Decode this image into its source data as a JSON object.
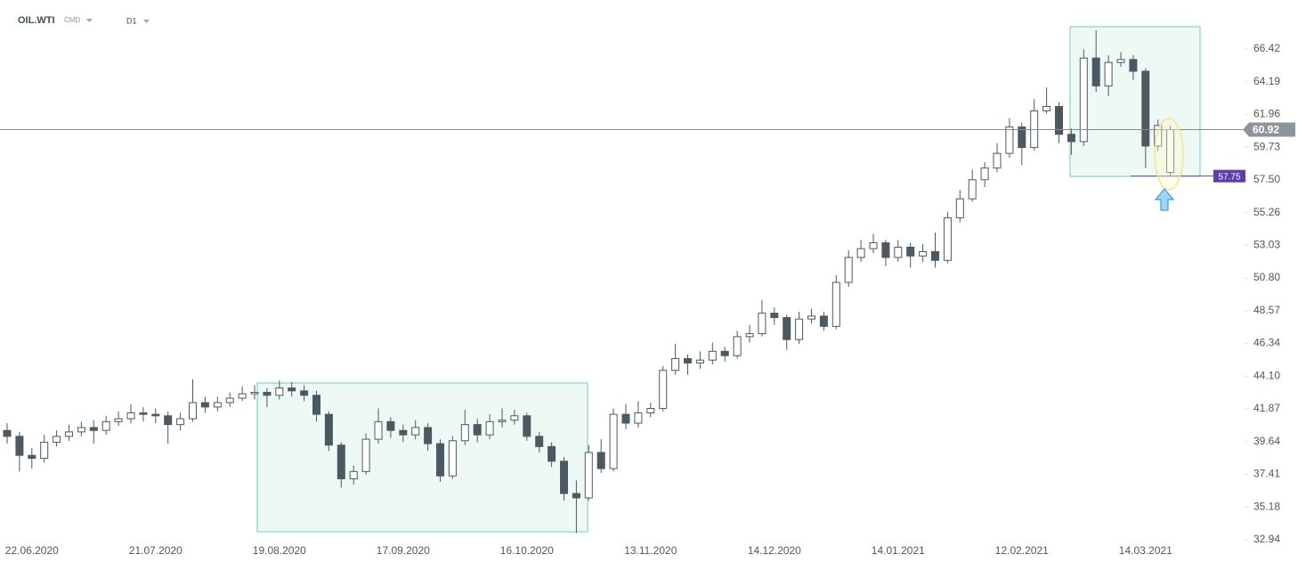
{
  "chart_data": {
    "type": "candlestick",
    "symbol": "OIL.WTI",
    "market": "CMD",
    "interval": "D1",
    "up_color": "#ffffff",
    "down_color": "#4b5a62",
    "outline_color": "#4b5a62",
    "last_price": 60.92,
    "level": 57.75,
    "ylim": [
      32.09,
      69.76
    ],
    "yticks": [
      32.94,
      35.18,
      37.41,
      39.64,
      41.87,
      {
        "value": 44.1,
        "label": "44.10"
      },
      46.34,
      48.57,
      {
        "value": 50.8,
        "label": "50.80"
      },
      53.03,
      55.26,
      {
        "value": 57.5,
        "label": "57.50"
      },
      59.73,
      61.96,
      64.19,
      66.42
    ],
    "categories": [
      null,
      null,
      "22.06.2020",
      null,
      null,
      null,
      null,
      null,
      null,
      null,
      null,
      null,
      "21.07.2020",
      null,
      null,
      null,
      null,
      null,
      null,
      null,
      null,
      null,
      "19.08.2020",
      null,
      null,
      null,
      null,
      null,
      null,
      null,
      null,
      null,
      "17.09.2020",
      null,
      null,
      null,
      null,
      null,
      null,
      null,
      null,
      null,
      "16.10.2020",
      null,
      null,
      null,
      null,
      null,
      null,
      null,
      null,
      null,
      "13.11.2020",
      null,
      null,
      null,
      null,
      null,
      null,
      null,
      null,
      null,
      "14.12.2020",
      null,
      null,
      null,
      null,
      null,
      null,
      null,
      null,
      null,
      "14.01.2021",
      null,
      null,
      null,
      null,
      null,
      null,
      null,
      null,
      null,
      "12.02.2021",
      null,
      null,
      null,
      null,
      null,
      null,
      null,
      null,
      null,
      "14.03.2021",
      null,
      null
    ],
    "open": [
      40.4,
      40.0,
      38.7,
      38.5,
      39.6,
      40.0,
      40.3,
      40.6,
      40.4,
      41.0,
      41.2,
      41.6,
      41.5,
      41.4,
      40.8,
      41.2,
      42.3,
      42.0,
      42.3,
      42.6,
      42.9,
      43.0,
      42.8,
      43.3,
      43.1,
      42.8,
      41.5,
      39.4,
      37.1,
      37.6,
      39.8,
      41.0,
      40.4,
      40.1,
      40.6,
      39.5,
      37.3,
      39.7,
      40.8,
      40.1,
      41.0,
      41.1,
      41.4,
      40.0,
      39.3,
      38.3,
      36.1,
      35.8,
      38.9,
      37.8,
      41.5,
      40.9,
      41.6,
      41.9,
      44.5,
      45.3,
      45.0,
      45.2,
      45.8,
      45.5,
      46.8,
      47.0,
      48.4,
      48.1,
      46.6,
      48.0,
      48.2,
      47.5,
      50.5,
      52.2,
      52.8,
      53.2,
      52.2,
      52.9,
      52.3,
      52.6,
      52.0,
      54.9,
      56.2,
      57.5,
      58.3,
      59.3,
      61.1,
      59.7,
      62.2,
      62.5,
      60.6,
      60.1,
      65.8,
      63.9,
      65.5,
      65.7,
      64.9,
      59.8,
      58.0
    ],
    "high": [
      40.9,
      40.3,
      39.2,
      40.1,
      40.4,
      40.8,
      41.0,
      41.1,
      41.4,
      41.7,
      42.2,
      42.0,
      41.9,
      41.7,
      41.6,
      43.9,
      42.7,
      42.7,
      43.0,
      43.4,
      43.5,
      43.3,
      43.8,
      43.7,
      43.5,
      43.1,
      41.7,
      39.6,
      38.0,
      40.2,
      41.9,
      41.3,
      40.8,
      41.1,
      40.9,
      39.8,
      40.0,
      41.8,
      41.2,
      41.5,
      41.9,
      41.8,
      41.6,
      40.3,
      39.6,
      38.6,
      37.0,
      39.4,
      39.8,
      41.9,
      42.2,
      42.4,
      42.3,
      44.8,
      46.3,
      45.6,
      45.8,
      46.4,
      46.1,
      47.2,
      47.6,
      49.3,
      48.8,
      48.3,
      48.5,
      48.7,
      48.5,
      51.0,
      52.7,
      53.4,
      53.8,
      53.4,
      53.4,
      53.2,
      53.1,
      53.9,
      55.3,
      56.8,
      58.2,
      58.7,
      60.0,
      61.7,
      61.4,
      63.0,
      63.8,
      62.8,
      61.0,
      66.4,
      67.7,
      66.0,
      66.2,
      66.0,
      65.1,
      61.6,
      61.2
    ],
    "low": [
      39.5,
      37.6,
      37.8,
      38.2,
      39.3,
      39.7,
      40.0,
      39.5,
      40.1,
      40.7,
      40.9,
      41.0,
      40.9,
      39.5,
      40.4,
      41.0,
      41.6,
      41.7,
      42.0,
      42.4,
      42.5,
      42.0,
      42.5,
      42.7,
      42.4,
      41.0,
      39.0,
      36.5,
      36.7,
      37.4,
      39.5,
      39.9,
      39.6,
      39.8,
      39.0,
      36.9,
      37.1,
      39.4,
      39.6,
      39.8,
      40.6,
      40.8,
      39.7,
      38.9,
      37.9,
      35.6,
      33.4,
      35.6,
      37.5,
      37.6,
      40.5,
      40.6,
      41.3,
      41.7,
      44.2,
      44.2,
      44.6,
      44.9,
      45.1,
      45.3,
      46.4,
      46.8,
      47.6,
      45.9,
      46.3,
      47.7,
      47.2,
      47.3,
      50.2,
      51.9,
      52.5,
      51.6,
      51.9,
      51.5,
      51.9,
      51.5,
      51.8,
      54.6,
      56.0,
      57.0,
      58.0,
      59.0,
      58.5,
      59.5,
      62.0,
      60.0,
      59.2,
      59.8,
      63.5,
      63.2,
      65.2,
      64.3,
      58.3,
      59.5,
      57.75
    ],
    "close": [
      40.0,
      38.7,
      38.5,
      39.6,
      40.0,
      40.3,
      40.6,
      40.4,
      41.0,
      41.2,
      41.6,
      41.5,
      41.4,
      40.8,
      41.2,
      42.3,
      42.0,
      42.3,
      42.6,
      42.9,
      43.0,
      42.8,
      43.3,
      43.1,
      42.8,
      41.5,
      39.4,
      37.1,
      37.6,
      39.8,
      41.0,
      40.4,
      40.1,
      40.6,
      39.5,
      37.3,
      39.7,
      40.8,
      40.1,
      41.0,
      41.1,
      41.4,
      40.0,
      39.3,
      38.3,
      36.1,
      35.8,
      38.9,
      37.8,
      41.5,
      40.9,
      41.6,
      41.9,
      44.5,
      45.3,
      45.0,
      45.2,
      45.8,
      45.5,
      46.8,
      47.0,
      48.4,
      48.1,
      46.6,
      48.0,
      48.2,
      47.5,
      50.5,
      52.2,
      52.8,
      53.2,
      52.2,
      52.9,
      52.3,
      52.6,
      52.0,
      54.9,
      56.2,
      57.5,
      58.3,
      59.3,
      61.1,
      59.7,
      62.2,
      62.5,
      60.6,
      60.1,
      65.8,
      63.9,
      65.5,
      65.7,
      64.9,
      59.8,
      61.2,
      60.92
    ]
  }
}
